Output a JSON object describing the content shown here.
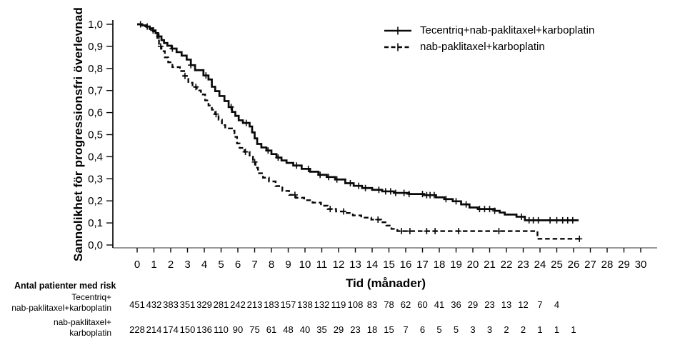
{
  "chart_data": {
    "type": "line",
    "subtype": "kaplan-meier-step",
    "title": "",
    "xlabel": "Tid (månader)",
    "ylabel": "Sannolikhet för progressionsfri överlevnad",
    "xlim": [
      0,
      30
    ],
    "ylim": [
      0.0,
      1.0
    ],
    "grid": false,
    "legend_position": "top-right",
    "x_ticks": [
      0,
      1,
      2,
      3,
      4,
      5,
      6,
      7,
      8,
      9,
      10,
      11,
      12,
      13,
      14,
      15,
      16,
      17,
      18,
      19,
      20,
      21,
      22,
      23,
      24,
      25,
      26,
      27,
      28,
      29,
      30
    ],
    "y_ticks": [
      {
        "v": 1.0,
        "label": "1,0"
      },
      {
        "v": 0.9,
        "label": "0,9"
      },
      {
        "v": 0.8,
        "label": "0,8"
      },
      {
        "v": 0.7,
        "label": "0,7"
      },
      {
        "v": 0.6,
        "label": "0,6"
      },
      {
        "v": 0.5,
        "label": "0,5"
      },
      {
        "v": 0.4,
        "label": "0,4"
      },
      {
        "v": 0.3,
        "label": "0,3"
      },
      {
        "v": 0.2,
        "label": "0,2"
      },
      {
        "v": 0.1,
        "label": "0,1"
      },
      {
        "v": 0.0,
        "label": "0,0"
      }
    ],
    "series": [
      {
        "name": "Tecentriq+nab-paklitaxel+karboplatin",
        "style": "solid",
        "points": [
          [
            0,
            1.0
          ],
          [
            0.3,
            0.995
          ],
          [
            0.55,
            0.99
          ],
          [
            0.75,
            0.982
          ],
          [
            0.95,
            0.972
          ],
          [
            1.1,
            0.96
          ],
          [
            1.25,
            0.945
          ],
          [
            1.45,
            0.928
          ],
          [
            1.6,
            0.915
          ],
          [
            1.8,
            0.903
          ],
          [
            2.05,
            0.89
          ],
          [
            2.35,
            0.874
          ],
          [
            2.65,
            0.858
          ],
          [
            2.95,
            0.84
          ],
          [
            3.2,
            0.815
          ],
          [
            3.45,
            0.792
          ],
          [
            3.95,
            0.768
          ],
          [
            4.25,
            0.75
          ],
          [
            4.45,
            0.717
          ],
          [
            4.65,
            0.697
          ],
          [
            4.9,
            0.675
          ],
          [
            5.2,
            0.652
          ],
          [
            5.45,
            0.625
          ],
          [
            5.65,
            0.603
          ],
          [
            5.85,
            0.585
          ],
          [
            6.05,
            0.565
          ],
          [
            6.3,
            0.553
          ],
          [
            6.7,
            0.537
          ],
          [
            6.85,
            0.51
          ],
          [
            7.0,
            0.483
          ],
          [
            7.15,
            0.458
          ],
          [
            7.4,
            0.442
          ],
          [
            7.7,
            0.428
          ],
          [
            8.0,
            0.412
          ],
          [
            8.3,
            0.396
          ],
          [
            8.6,
            0.383
          ],
          [
            8.9,
            0.372
          ],
          [
            9.3,
            0.36
          ],
          [
            9.8,
            0.345
          ],
          [
            10.3,
            0.332
          ],
          [
            10.8,
            0.318
          ],
          [
            11.3,
            0.308
          ],
          [
            11.8,
            0.297
          ],
          [
            12.4,
            0.28
          ],
          [
            12.9,
            0.268
          ],
          [
            13.4,
            0.258
          ],
          [
            14.0,
            0.25
          ],
          [
            14.6,
            0.243
          ],
          [
            15.3,
            0.236
          ],
          [
            16.2,
            0.231
          ],
          [
            17.1,
            0.226
          ],
          [
            17.8,
            0.216
          ],
          [
            18.3,
            0.208
          ],
          [
            18.8,
            0.198
          ],
          [
            19.3,
            0.184
          ],
          [
            19.8,
            0.17
          ],
          [
            20.3,
            0.163
          ],
          [
            21.3,
            0.155
          ],
          [
            21.6,
            0.147
          ],
          [
            21.9,
            0.138
          ],
          [
            22.6,
            0.128
          ],
          [
            23.1,
            0.112
          ],
          [
            26.3,
            0.112
          ]
        ],
        "censor_times": [
          0.2,
          0.6,
          0.95,
          1.3,
          2.1,
          3.2,
          4.1,
          5.6,
          6.5,
          7.8,
          8.4,
          9.5,
          10.2,
          10.9,
          11.4,
          11.9,
          12.7,
          13.2,
          13.6,
          14.4,
          14.8,
          15.1,
          15.4,
          15.9,
          16.2,
          17.0,
          17.25,
          17.45,
          17.7,
          18.4,
          19.0,
          19.6,
          20.4,
          20.7,
          21.0,
          21.3,
          22.9,
          23.35,
          23.6,
          23.9,
          24.6,
          25.0,
          25.35,
          25.65,
          25.95
        ]
      },
      {
        "name": "nab-paklitaxel+karboplatin",
        "style": "dashed",
        "points": [
          [
            0,
            1.0
          ],
          [
            0.3,
            0.995
          ],
          [
            0.55,
            0.988
          ],
          [
            0.75,
            0.978
          ],
          [
            0.95,
            0.968
          ],
          [
            1.1,
            0.952
          ],
          [
            1.2,
            0.93
          ],
          [
            1.3,
            0.9
          ],
          [
            1.45,
            0.878
          ],
          [
            1.65,
            0.85
          ],
          [
            1.85,
            0.828
          ],
          [
            2.1,
            0.806
          ],
          [
            2.55,
            0.788
          ],
          [
            2.8,
            0.766
          ],
          [
            3.05,
            0.735
          ],
          [
            3.3,
            0.716
          ],
          [
            3.55,
            0.7
          ],
          [
            3.8,
            0.682
          ],
          [
            4.05,
            0.655
          ],
          [
            4.25,
            0.632
          ],
          [
            4.45,
            0.613
          ],
          [
            4.65,
            0.593
          ],
          [
            4.85,
            0.568
          ],
          [
            5.05,
            0.543
          ],
          [
            5.25,
            0.528
          ],
          [
            5.65,
            0.518
          ],
          [
            5.8,
            0.49
          ],
          [
            5.95,
            0.46
          ],
          [
            6.1,
            0.44
          ],
          [
            6.4,
            0.422
          ],
          [
            6.7,
            0.4
          ],
          [
            6.9,
            0.376
          ],
          [
            7.05,
            0.35
          ],
          [
            7.2,
            0.325
          ],
          [
            7.5,
            0.305
          ],
          [
            7.85,
            0.288
          ],
          [
            8.25,
            0.267
          ],
          [
            8.65,
            0.245
          ],
          [
            9.05,
            0.227
          ],
          [
            9.45,
            0.214
          ],
          [
            9.95,
            0.203
          ],
          [
            10.45,
            0.192
          ],
          [
            10.95,
            0.178
          ],
          [
            11.35,
            0.163
          ],
          [
            11.85,
            0.152
          ],
          [
            12.35,
            0.145
          ],
          [
            12.85,
            0.134
          ],
          [
            13.35,
            0.124
          ],
          [
            13.95,
            0.115
          ],
          [
            14.55,
            0.103
          ],
          [
            14.85,
            0.088
          ],
          [
            15.15,
            0.073
          ],
          [
            15.5,
            0.063
          ],
          [
            23.85,
            0.028
          ],
          [
            26.4,
            0.028
          ]
        ],
        "censor_times": [
          1.4,
          2.85,
          3.5,
          4.7,
          6.45,
          7.0,
          9.4,
          11.5,
          12.3,
          14.35,
          15.75,
          16.25,
          17.25,
          17.75,
          19.15,
          21.55,
          26.35
        ]
      }
    ]
  },
  "risk_table": {
    "title": "Antal patienter med risk",
    "rows": [
      {
        "label_lines": [
          "Tecentriq+",
          "nab-paklitaxel+karboplatin"
        ],
        "counts": [
          451,
          432,
          383,
          351,
          329,
          281,
          242,
          213,
          183,
          157,
          138,
          132,
          119,
          108,
          83,
          78,
          62,
          60,
          41,
          36,
          29,
          23,
          13,
          12,
          7,
          4
        ]
      },
      {
        "label_lines": [
          "nab-paklitaxel+",
          "karboplatin"
        ],
        "counts": [
          228,
          214,
          174,
          150,
          136,
          110,
          90,
          75,
          61,
          48,
          40,
          35,
          29,
          23,
          18,
          15,
          7,
          6,
          5,
          5,
          3,
          3,
          2,
          2,
          1,
          1,
          1
        ]
      }
    ]
  },
  "colors": {
    "line": "#0a0a0a",
    "text": "#000000",
    "axis": "#333333"
  }
}
